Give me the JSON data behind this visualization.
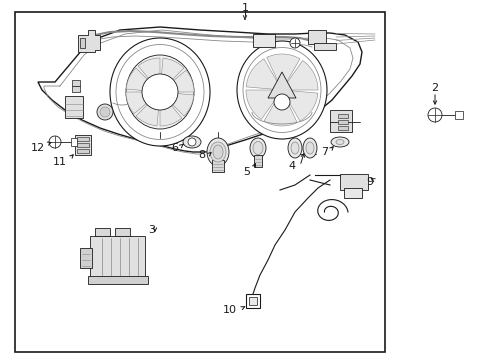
{
  "background_color": "#ffffff",
  "line_color": "#1a1a1a",
  "gray_color": "#888888",
  "light_gray": "#cccccc",
  "fig_width": 4.89,
  "fig_height": 3.6,
  "dpi": 100
}
